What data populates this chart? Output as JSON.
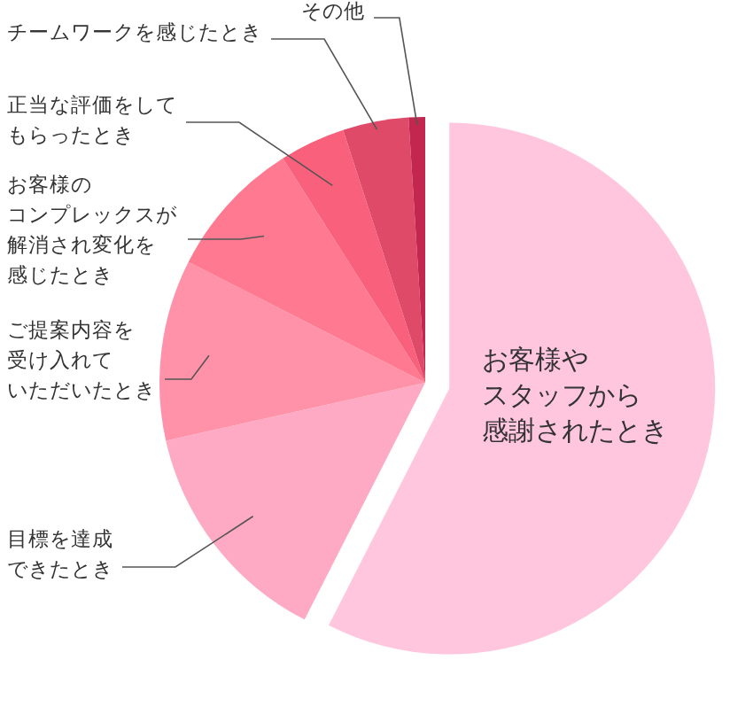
{
  "chart_data": {
    "type": "pie",
    "categories": [
      "お客様やスタッフから感謝されたとき",
      "目標を達成できたとき",
      "ご提案内容を受け入れていただいたとき",
      "お客様のコンプレックスが解消され変化を感じたとき",
      "正当な評価をしてもらったとき",
      "チームワークを感じたとき",
      "その他"
    ],
    "values": [
      57.5,
      14,
      11,
      8.5,
      4,
      4,
      1
    ],
    "colors": [
      "#ffc6dd",
      "#ffaac4",
      "#ff92a9",
      "#ff7a90",
      "#f9607c",
      "#de4a68",
      "#c3264f"
    ]
  }
}
